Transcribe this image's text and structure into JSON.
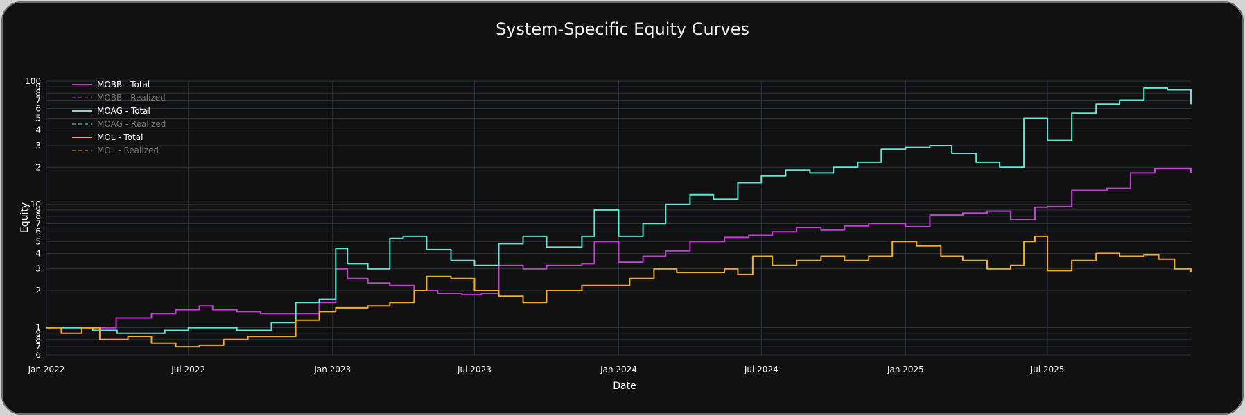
{
  "chart_data": {
    "type": "line",
    "title": "System-Specific Equity Curves",
    "xlabel": "Date",
    "ylabel": "Equity",
    "y_scale": "log",
    "ylim": [
      0.6,
      100
    ],
    "xlim": [
      "2022-01-01",
      "2025-12-31"
    ],
    "x_ticks": [
      "Jan 2022",
      "Jul 2022",
      "Jan 2023",
      "Jul 2023",
      "Jan 2024",
      "Jul 2024",
      "Jan 2025",
      "Jul 2025"
    ],
    "y_ticks": [
      {
        "v": 0.6,
        "l": "6"
      },
      {
        "v": 0.7,
        "l": "7"
      },
      {
        "v": 0.8,
        "l": "8"
      },
      {
        "v": 0.9,
        "l": "9"
      },
      {
        "v": 1,
        "l": "1"
      },
      {
        "v": 2,
        "l": "2"
      },
      {
        "v": 3,
        "l": "3"
      },
      {
        "v": 4,
        "l": "4"
      },
      {
        "v": 5,
        "l": "5"
      },
      {
        "v": 6,
        "l": "6"
      },
      {
        "v": 7,
        "l": "7"
      },
      {
        "v": 8,
        "l": "8"
      },
      {
        "v": 9,
        "l": "9"
      },
      {
        "v": 10,
        "l": "10"
      },
      {
        "v": 20,
        "l": "2"
      },
      {
        "v": 30,
        "l": "3"
      },
      {
        "v": 40,
        "l": "4"
      },
      {
        "v": 50,
        "l": "5"
      },
      {
        "v": 60,
        "l": "6"
      },
      {
        "v": 70,
        "l": "7"
      },
      {
        "v": 80,
        "l": "8"
      },
      {
        "v": 90,
        "l": "9"
      },
      {
        "v": 100,
        "l": "100"
      }
    ],
    "grid": true,
    "legend_position": "top-left",
    "series": [
      {
        "name": "MOBB - Total",
        "color": "#c43fd6",
        "dash": "solid",
        "visible": true,
        "x": [
          "2022-01-01",
          "2022-02-15",
          "2022-03-31",
          "2022-04-15",
          "2022-05-15",
          "2022-06-15",
          "2022-07-15",
          "2022-08-01",
          "2022-09-01",
          "2022-10-01",
          "2022-11-15",
          "2022-12-15",
          "2023-01-05",
          "2023-01-20",
          "2023-02-15",
          "2023-03-15",
          "2023-04-15",
          "2023-05-15",
          "2023-06-15",
          "2023-07-10",
          "2023-08-01",
          "2023-09-01",
          "2023-10-01",
          "2023-11-15",
          "2023-12-01",
          "2024-01-01",
          "2024-02-01",
          "2024-03-01",
          "2024-04-01",
          "2024-05-15",
          "2024-06-15",
          "2024-07-15",
          "2024-08-15",
          "2024-09-15",
          "2024-10-15",
          "2024-11-15",
          "2025-01-01",
          "2025-02-01",
          "2025-03-15",
          "2025-04-15",
          "2025-05-15",
          "2025-06-15",
          "2025-07-01",
          "2025-08-01",
          "2025-09-15",
          "2025-10-15",
          "2025-11-15",
          "2025-12-31"
        ],
        "y": [
          1.0,
          1.0,
          1.2,
          1.2,
          1.3,
          1.4,
          1.5,
          1.4,
          1.35,
          1.3,
          1.3,
          1.6,
          3.0,
          2.5,
          2.3,
          2.2,
          2.0,
          1.9,
          1.85,
          1.9,
          3.2,
          3.0,
          3.2,
          3.3,
          5.0,
          3.4,
          3.8,
          4.2,
          5.0,
          5.4,
          5.6,
          6.0,
          6.5,
          6.2,
          6.7,
          7.0,
          6.6,
          8.2,
          8.5,
          8.8,
          7.5,
          9.5,
          9.6,
          13.0,
          13.5,
          18.0,
          19.5,
          18.0
        ]
      },
      {
        "name": "MOBB - Realized",
        "color": "#5a2a6e",
        "dash": "dash",
        "visible": false,
        "x": [],
        "y": []
      },
      {
        "name": "MOAG - Total",
        "color": "#5ee8d5",
        "dash": "solid",
        "visible": true,
        "x": [
          "2022-01-01",
          "2022-02-01",
          "2022-03-01",
          "2022-04-01",
          "2022-05-01",
          "2022-06-01",
          "2022-07-01",
          "2022-08-01",
          "2022-09-01",
          "2022-10-15",
          "2022-11-15",
          "2022-12-15",
          "2023-01-05",
          "2023-01-20",
          "2023-02-15",
          "2023-03-15",
          "2023-04-01",
          "2023-05-01",
          "2023-06-01",
          "2023-07-01",
          "2023-08-01",
          "2023-09-01",
          "2023-10-01",
          "2023-11-15",
          "2023-12-01",
          "2024-01-01",
          "2024-02-01",
          "2024-03-01",
          "2024-04-01",
          "2024-05-01",
          "2024-06-01",
          "2024-07-01",
          "2024-08-01",
          "2024-09-01",
          "2024-10-01",
          "2024-11-01",
          "2024-12-01",
          "2025-01-01",
          "2025-02-01",
          "2025-03-01",
          "2025-04-01",
          "2025-05-01",
          "2025-06-01",
          "2025-07-01",
          "2025-08-01",
          "2025-09-01",
          "2025-10-01",
          "2025-11-01",
          "2025-12-01",
          "2025-12-31"
        ],
        "y": [
          1.0,
          1.0,
          0.95,
          0.9,
          0.9,
          0.95,
          1.0,
          1.0,
          0.95,
          1.1,
          1.6,
          1.7,
          4.4,
          3.3,
          3.0,
          5.3,
          5.5,
          4.3,
          3.5,
          3.2,
          4.8,
          5.5,
          4.5,
          5.5,
          9.0,
          5.5,
          7.0,
          10.0,
          12.0,
          11.0,
          15.0,
          17.0,
          19.0,
          18.0,
          20.0,
          22.0,
          28.0,
          29.0,
          30.0,
          26.0,
          22.0,
          20.0,
          50.0,
          33.0,
          55.0,
          65.0,
          70.0,
          88.0,
          85.0,
          65.0
        ]
      },
      {
        "name": "MOAG - Realized",
        "color": "#2e7a6e",
        "dash": "dash",
        "visible": false,
        "x": [],
        "y": []
      },
      {
        "name": "MOL - Total",
        "color": "#f5ad1f",
        "dash": "solid",
        "visible": true,
        "x": [
          "2022-01-01",
          "2022-01-20",
          "2022-02-15",
          "2022-03-10",
          "2022-04-15",
          "2022-05-15",
          "2022-06-15",
          "2022-07-15",
          "2022-08-15",
          "2022-09-15",
          "2022-10-15",
          "2022-11-15",
          "2022-12-15",
          "2023-01-05",
          "2023-02-15",
          "2023-03-15",
          "2023-04-15",
          "2023-05-01",
          "2023-06-01",
          "2023-07-01",
          "2023-08-01",
          "2023-09-01",
          "2023-10-01",
          "2023-11-15",
          "2023-12-15",
          "2024-01-15",
          "2024-02-15",
          "2024-03-15",
          "2024-04-15",
          "2024-05-15",
          "2024-06-01",
          "2024-06-20",
          "2024-07-15",
          "2024-08-15",
          "2024-09-15",
          "2024-10-15",
          "2024-11-15",
          "2024-12-15",
          "2025-01-15",
          "2025-02-15",
          "2025-03-15",
          "2025-04-15",
          "2025-05-15",
          "2025-06-01",
          "2025-06-15",
          "2025-07-01",
          "2025-08-01",
          "2025-09-01",
          "2025-10-01",
          "2025-11-01",
          "2025-11-20",
          "2025-12-10",
          "2025-12-31"
        ],
        "y": [
          1.0,
          0.9,
          1.0,
          0.8,
          0.85,
          0.75,
          0.7,
          0.72,
          0.8,
          0.85,
          0.85,
          1.15,
          1.35,
          1.45,
          1.5,
          1.6,
          2.0,
          2.6,
          2.5,
          2.0,
          1.8,
          1.6,
          2.0,
          2.2,
          2.2,
          2.5,
          3.0,
          2.8,
          2.8,
          3.0,
          2.7,
          3.8,
          3.2,
          3.5,
          3.8,
          3.5,
          3.8,
          5.0,
          4.6,
          3.8,
          3.5,
          3.0,
          3.2,
          5.0,
          5.5,
          2.9,
          3.5,
          4.0,
          3.8,
          3.9,
          3.6,
          3.0,
          2.8
        ]
      },
      {
        "name": "MOL - Realized",
        "color": "#6e5a2a",
        "dash": "dash",
        "visible": false,
        "x": [],
        "y": []
      }
    ]
  }
}
